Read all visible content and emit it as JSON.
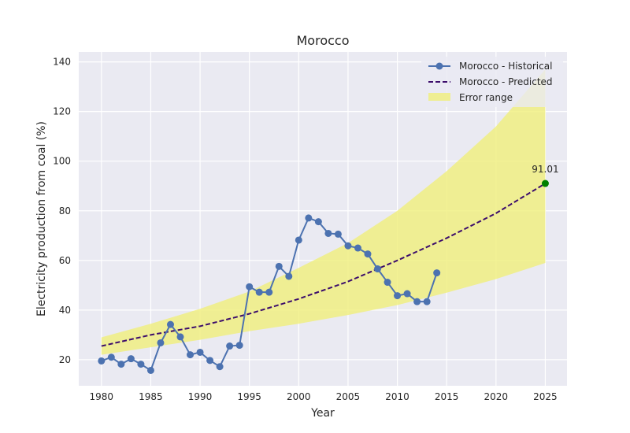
{
  "chart_data": {
    "type": "line",
    "title": "Morocco",
    "xlabel": "Year",
    "ylabel": "Electricity production from coal (%)",
    "xlim": [
      1977.7,
      2027.2
    ],
    "ylim": [
      9.5,
      144
    ],
    "xticks": [
      1980,
      1985,
      1990,
      1995,
      2000,
      2005,
      2010,
      2015,
      2020,
      2025
    ],
    "yticks": [
      20,
      40,
      60,
      80,
      100,
      120,
      140
    ],
    "grid": true,
    "legend_position": "top-right",
    "series": [
      {
        "name": "Morocco - Historical",
        "color": "#4c72b0",
        "style": "solid-with-markers",
        "x": [
          1980,
          1981,
          1982,
          1983,
          1984,
          1985,
          1986,
          1987,
          1988,
          1989,
          1990,
          1991,
          1992,
          1993,
          1994,
          1995,
          1996,
          1997,
          1998,
          1999,
          2000,
          2001,
          2002,
          2003,
          2004,
          2005,
          2006,
          2007,
          2008,
          2009,
          2010,
          2011,
          2012,
          2013,
          2014
        ],
        "y": [
          19.5,
          21.0,
          18.2,
          20.4,
          18.2,
          15.7,
          26.8,
          34.2,
          29.2,
          22.0,
          23.0,
          19.7,
          17.2,
          25.5,
          25.8,
          49.4,
          47.2,
          47.2,
          57.6,
          53.6,
          68.2,
          77.1,
          75.6,
          70.9,
          70.6,
          65.9,
          65.0,
          62.6,
          56.6,
          51.2,
          45.8,
          46.6,
          43.4,
          43.4,
          55.0
        ]
      },
      {
        "name": "Morocco - Predicted",
        "color": "#3c0d6b",
        "style": "dashed",
        "x": [
          1980,
          1985,
          1990,
          1995,
          2000,
          2005,
          2010,
          2015,
          2020,
          2025
        ],
        "y": [
          25.5,
          30.0,
          33.5,
          38.5,
          44.5,
          51.5,
          60.0,
          69.0,
          79.0,
          91.01
        ]
      },
      {
        "name": "Error range",
        "color": "#f0ef7a",
        "style": "band",
        "x": [
          1980,
          1985,
          1990,
          1995,
          2000,
          2005,
          2010,
          2015,
          2020,
          2025
        ],
        "lower": [
          22.0,
          25.0,
          28.0,
          31.5,
          34.5,
          38.0,
          42.0,
          47.0,
          52.5,
          59.0
        ],
        "upper": [
          29.0,
          34.5,
          40.5,
          47.5,
          57.0,
          67.0,
          80.0,
          96.0,
          114.0,
          137.0
        ]
      }
    ],
    "annotations": [
      {
        "text": "91.01",
        "x": 2025,
        "y": 91.01,
        "marker_color": "#008000"
      }
    ]
  }
}
